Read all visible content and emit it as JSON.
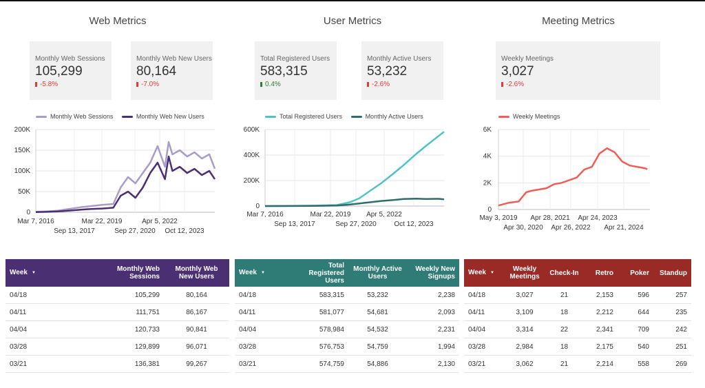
{
  "sections": {
    "web": {
      "title": "Web Metrics"
    },
    "user": {
      "title": "User Metrics"
    },
    "meeting": {
      "title": "Meeting Metrics"
    }
  },
  "kpis": {
    "web_sessions": {
      "label": "Monthly Web Sessions",
      "value": "105,299",
      "delta": "-5.8%",
      "direction": "down"
    },
    "web_new_users": {
      "label": "Monthly Web New Users",
      "value": "80,164",
      "delta": "-7.0%",
      "direction": "down"
    },
    "total_registered": {
      "label": "Total Registered Users",
      "value": "583,315",
      "delta": "0.4%",
      "direction": "up"
    },
    "monthly_active": {
      "label": "Monthly Active Users",
      "value": "53,232",
      "delta": "-2.6%",
      "direction": "down"
    },
    "weekly_meetings": {
      "label": "Weekly Meetings",
      "value": "3,027",
      "delta": "-2.6%",
      "direction": "down"
    }
  },
  "colors": {
    "web_sessions": "#a99cc6",
    "web_new_users": "#4a2f73",
    "registered": "#4fc3c3",
    "active": "#2e6d6c",
    "meetings": "#ef5e56",
    "table_web_header": "#4a2f73",
    "table_user_header": "#2f7b75",
    "table_meeting_header": "#9a2a26"
  },
  "chart_data": [
    {
      "type": "line",
      "legend_position": "top",
      "grid": true,
      "ylim": [
        0,
        200000
      ],
      "y_ticks": [
        "0",
        "50K",
        "100K",
        "150K",
        "200K"
      ],
      "x_ticks_row1": [
        "Mar 7, 2016",
        "Mar 22, 2019",
        "Apr 5, 2022"
      ],
      "x_ticks_row2": [
        "Sep 13, 2017",
        "Sep 27, 2020",
        "Oct 12, 2023"
      ],
      "x_range": [
        "2016-03",
        "2024-04"
      ],
      "series": [
        {
          "name": "Monthly Web Sessions",
          "x": [
            "2016-03",
            "2016-09",
            "2017-03",
            "2017-09",
            "2018-03",
            "2018-09",
            "2019-03",
            "2019-09",
            "2020-01",
            "2020-05",
            "2020-09",
            "2021-01",
            "2021-05",
            "2021-09",
            "2022-01",
            "2022-03",
            "2022-05",
            "2022-09",
            "2023-01",
            "2023-05",
            "2023-09",
            "2024-01",
            "2024-04"
          ],
          "y": [
            1000,
            2000,
            4000,
            8000,
            12000,
            15000,
            18000,
            20000,
            60000,
            85000,
            70000,
            95000,
            120000,
            160000,
            110000,
            170000,
            140000,
            150000,
            135000,
            145000,
            130000,
            140000,
            105299
          ]
        },
        {
          "name": "Monthly Web New Users",
          "x": [
            "2016-03",
            "2016-09",
            "2017-03",
            "2017-09",
            "2018-03",
            "2018-09",
            "2019-03",
            "2019-09",
            "2020-01",
            "2020-05",
            "2020-09",
            "2021-01",
            "2021-05",
            "2021-09",
            "2022-01",
            "2022-03",
            "2022-05",
            "2022-09",
            "2023-01",
            "2023-05",
            "2023-09",
            "2024-01",
            "2024-04"
          ],
          "y": [
            500,
            1000,
            2000,
            4000,
            6000,
            8000,
            9000,
            11000,
            40000,
            50000,
            35000,
            60000,
            95000,
            120000,
            80000,
            135000,
            100000,
            110000,
            95000,
            105000,
            90000,
            100000,
            80164
          ]
        }
      ]
    },
    {
      "type": "line",
      "legend_position": "top",
      "grid": true,
      "ylim": [
        0,
        600000
      ],
      "y_ticks": [
        "0",
        "200K",
        "400K",
        "600K"
      ],
      "x_ticks_row1": [
        "Mar 7, 2016",
        "Mar 22, 2019",
        "Apr 5, 2022"
      ],
      "x_ticks_row2": [
        "Sep 13, 2017",
        "Sep 27, 2020",
        "Oct 12, 2023"
      ],
      "x_range": [
        "2016-03",
        "2024-04"
      ],
      "series": [
        {
          "name": "Total Registered Users",
          "x": [
            "2016-03",
            "2017-06",
            "2018-06",
            "2019-06",
            "2020-01",
            "2020-06",
            "2021-01",
            "2021-06",
            "2022-01",
            "2022-06",
            "2023-01",
            "2023-06",
            "2024-01",
            "2024-04"
          ],
          "y": [
            0,
            1000,
            3000,
            8000,
            30000,
            60000,
            130000,
            180000,
            260000,
            320000,
            410000,
            470000,
            550000,
            583315
          ]
        },
        {
          "name": "Monthly Active Users",
          "x": [
            "2016-03",
            "2017-06",
            "2018-06",
            "2019-06",
            "2020-01",
            "2020-06",
            "2021-01",
            "2021-06",
            "2022-01",
            "2022-06",
            "2023-01",
            "2023-06",
            "2024-01",
            "2024-04"
          ],
          "y": [
            0,
            500,
            1500,
            4000,
            12000,
            20000,
            32000,
            40000,
            48000,
            55000,
            58000,
            55000,
            57000,
            53232
          ]
        }
      ]
    },
    {
      "type": "line",
      "legend_position": "top",
      "grid": true,
      "ylim": [
        0,
        6000
      ],
      "y_ticks": [
        "0",
        "2K",
        "4K",
        "6K"
      ],
      "x_ticks_row1": [
        "May 3, 2019",
        "Apr 28, 2021",
        "Apr 24, 2023"
      ],
      "x_ticks_row2": [
        "Apr 30, 2020",
        "Apr 26, 2022",
        "Apr 21, 2024"
      ],
      "x_range": [
        "2019-05",
        "2024-05"
      ],
      "series": [
        {
          "name": "Weekly Meetings",
          "x": [
            "2019-05",
            "2019-09",
            "2020-01",
            "2020-04",
            "2020-06",
            "2020-09",
            "2020-12",
            "2021-03",
            "2021-06",
            "2021-09",
            "2021-12",
            "2022-03",
            "2022-06",
            "2022-09",
            "2022-12",
            "2023-03",
            "2023-06",
            "2023-09",
            "2023-12",
            "2024-03",
            "2024-04"
          ],
          "y": [
            300,
            500,
            600,
            1300,
            1400,
            1500,
            1600,
            1900,
            2000,
            2200,
            2400,
            3000,
            3200,
            4200,
            4600,
            4300,
            3600,
            3300,
            3200,
            3100,
            3027
          ]
        }
      ]
    }
  ],
  "tables": {
    "web": {
      "columns": [
        "Week",
        "Monthly Web Sessions",
        "Monthly Web New Users"
      ],
      "rows": [
        [
          "04/18",
          "105,299",
          "80,164"
        ],
        [
          "04/11",
          "111,751",
          "86,167"
        ],
        [
          "04/04",
          "120,733",
          "90,841"
        ],
        [
          "03/28",
          "129,899",
          "96,071"
        ],
        [
          "03/21",
          "136,381",
          "99,267"
        ]
      ]
    },
    "user": {
      "columns": [
        "Week",
        "Total Registered Users",
        "Monthly Active Users",
        "Weekly New Signups"
      ],
      "rows": [
        [
          "04/18",
          "583,315",
          "53,232",
          "2,238"
        ],
        [
          "04/11",
          "581,077",
          "54,681",
          "2,093"
        ],
        [
          "04/04",
          "578,984",
          "54,532",
          "2,231"
        ],
        [
          "03/28",
          "576,753",
          "54,759",
          "1,994"
        ],
        [
          "03/21",
          "574,759",
          "54,886",
          "2,130"
        ]
      ]
    },
    "meeting": {
      "columns": [
        "Week",
        "Weekly Meetings",
        "Check-In",
        "Retro",
        "Poker",
        "Standup"
      ],
      "rows": [
        [
          "04/18",
          "3,027",
          "21",
          "2,153",
          "596",
          "257"
        ],
        [
          "04/11",
          "3,109",
          "18",
          "2,212",
          "644",
          "235"
        ],
        [
          "04/04",
          "3,314",
          "22",
          "2,341",
          "709",
          "242"
        ],
        [
          "03/28",
          "2,984",
          "18",
          "2,175",
          "540",
          "251"
        ],
        [
          "03/21",
          "3,062",
          "21",
          "2,214",
          "558",
          "269"
        ]
      ]
    }
  }
}
